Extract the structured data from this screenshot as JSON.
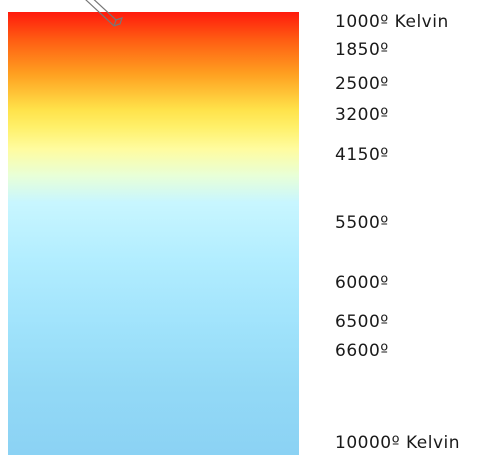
{
  "labels": [
    "1000º Kelvin",
    "1850º",
    "2500º",
    "3200º",
    "4150º",
    "5500º",
    "6000º",
    "6500º",
    "6600º",
    "10000º Kelvin"
  ],
  "colors": {
    "top": "#ff1a0d",
    "orange": "#ffa020",
    "yellow": "#ffe24a",
    "pale": "#e8ffd8",
    "light_blue": "#b2edff",
    "bottom": "#8bd2f4"
  },
  "icons": {
    "pencil": "pencil-icon"
  }
}
